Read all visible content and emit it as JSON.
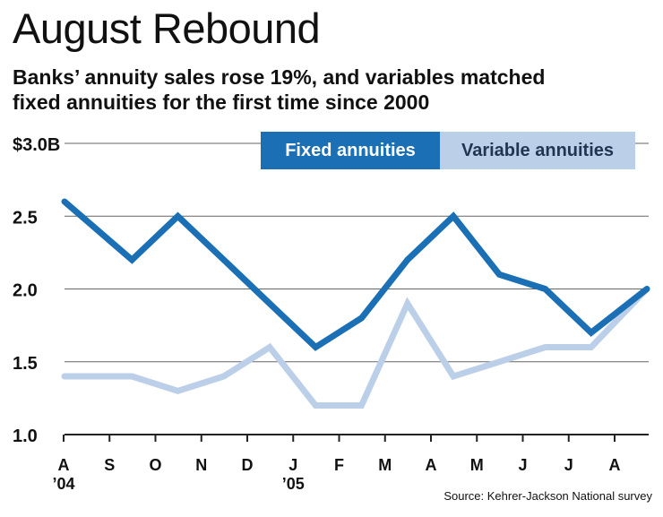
{
  "title": "August Rebound",
  "subtitle": [
    "Banks’ annuity sales rose 19%, and variables matched",
    "fixed annuities for the first time since 2000"
  ],
  "source": "Source: Kehrer-Jackson National survey",
  "colors": {
    "fixed": "#1a6fb5",
    "variable": "#bccfe9",
    "grid": "#666666"
  },
  "chart_data": {
    "type": "line",
    "categories": [
      "A",
      "S",
      "O",
      "N",
      "D",
      "J",
      "F",
      "M",
      "A",
      "M",
      "J",
      "J",
      "A"
    ],
    "year_labels": [
      "’04",
      "",
      "",
      "",
      "",
      "’05",
      "",
      "",
      "",
      "",
      "",
      "",
      ""
    ],
    "y_ticks": [
      "1.0",
      "1.5",
      "2.0",
      "2.5",
      "$3.0B"
    ],
    "ylim": [
      1.0,
      3.0
    ],
    "legend_position": "top-right",
    "grid": true,
    "series": [
      {
        "name": "Fixed annuities",
        "values": [
          2.6,
          2.2,
          2.5,
          2.2,
          1.9,
          1.6,
          1.8,
          2.2,
          2.5,
          2.1,
          2.0,
          1.7,
          2.0
        ],
        "color": "#1a6fb5"
      },
      {
        "name": "Variable annuities",
        "values": [
          1.4,
          1.4,
          1.3,
          1.4,
          1.6,
          1.2,
          1.2,
          1.9,
          1.4,
          1.5,
          1.6,
          1.6,
          2.0
        ],
        "color": "#bccfe9"
      }
    ]
  }
}
